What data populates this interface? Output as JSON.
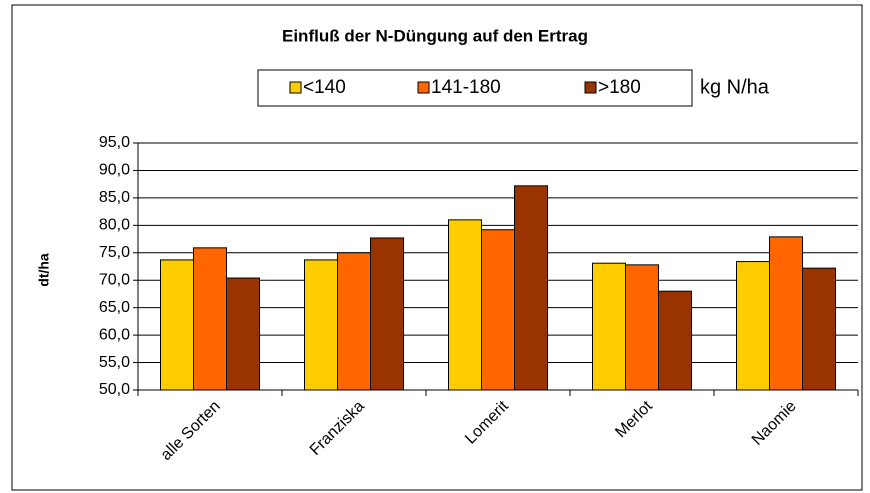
{
  "chart_data": {
    "type": "bar",
    "title": "Einfluß der N-Düngung auf den Ertrag",
    "annotation": "kg N/ha",
    "y_label": "dt/ha",
    "categories": [
      "alle Sorten",
      "Franziska",
      "Lomerit",
      "Merlot",
      "Naomie"
    ],
    "series": [
      {
        "name": "<140",
        "color": "#FFCC00",
        "values": [
          73.7,
          73.7,
          81.0,
          73.1,
          73.4
        ]
      },
      {
        "name": "141-180",
        "color": "#FF6600",
        "values": [
          75.9,
          75.0,
          79.2,
          72.8,
          77.9
        ]
      },
      {
        "name": ">180",
        "color": "#993300",
        "values": [
          70.4,
          77.7,
          87.2,
          68.0,
          72.2
        ]
      }
    ],
    "ylim": [
      50,
      95
    ],
    "yticks": [
      {
        "value": 50,
        "label": "50,0"
      },
      {
        "value": 55,
        "label": "55,0"
      },
      {
        "value": 60,
        "label": "60,0"
      },
      {
        "value": 65,
        "label": "65,0"
      },
      {
        "value": 70,
        "label": "70,0"
      },
      {
        "value": 75,
        "label": "75,0"
      },
      {
        "value": 80,
        "label": "80,0"
      },
      {
        "value": 85,
        "label": "85,0"
      },
      {
        "value": 90,
        "label": "90,0"
      },
      {
        "value": 95,
        "label": "95,0"
      }
    ],
    "grid": true,
    "legend": "top"
  }
}
